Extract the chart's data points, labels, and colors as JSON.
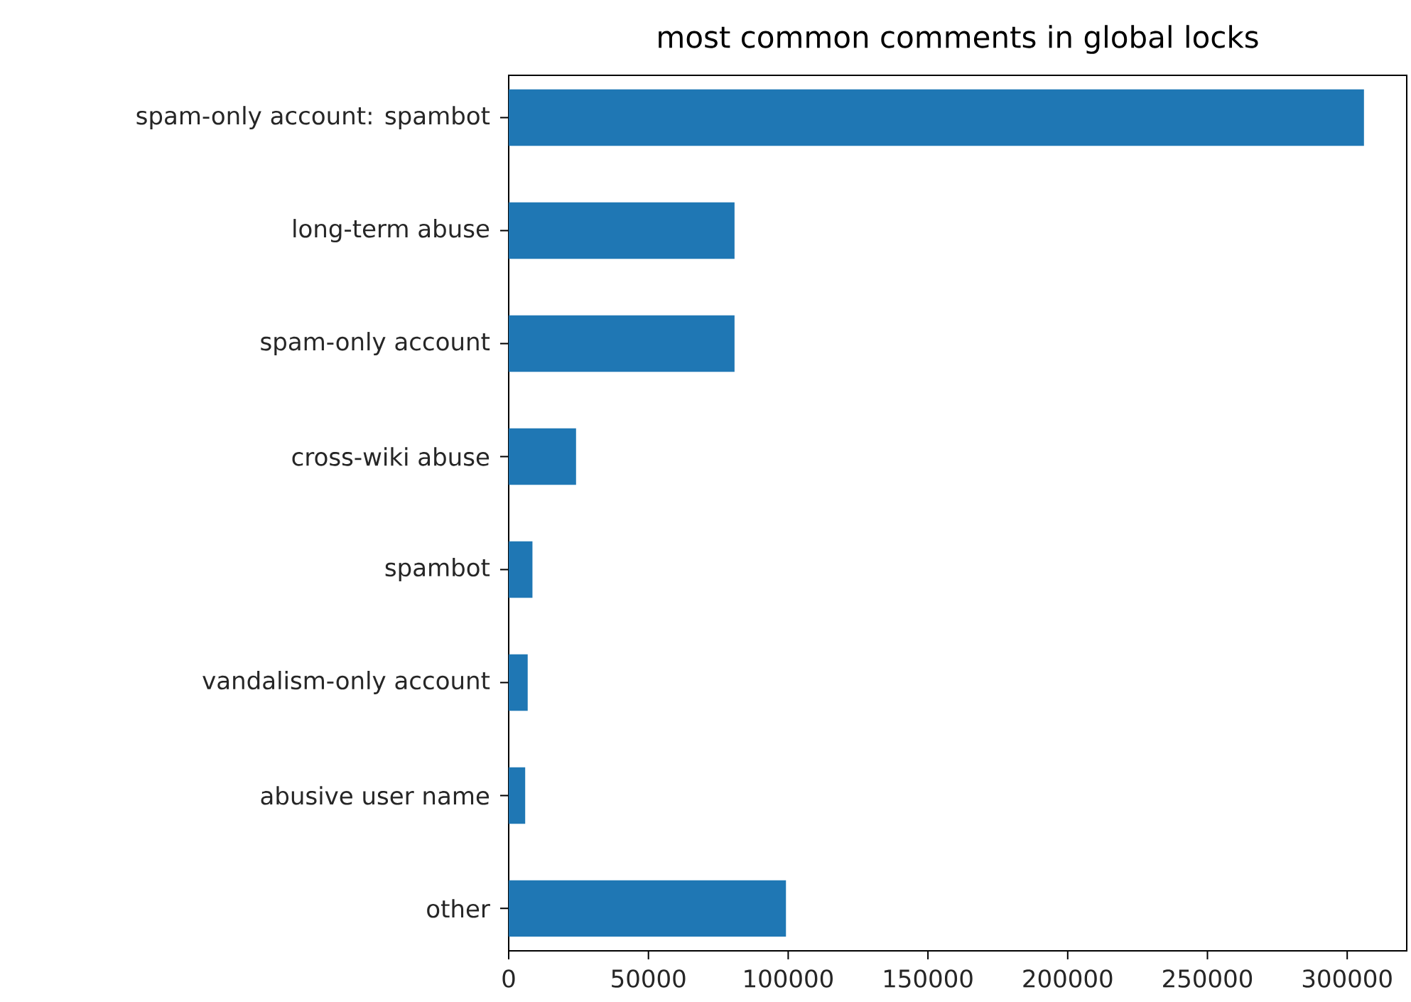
{
  "chart_data": {
    "type": "bar",
    "orientation": "horizontal",
    "title": "most common comments in global locks",
    "categories": [
      "spam-only account: spambot",
      "long-term abuse",
      "spam-only account",
      "cross-wiki abuse",
      "spambot",
      "vandalism-only account",
      "abusive user name",
      "other"
    ],
    "values": [
      306000,
      80800,
      80800,
      24100,
      8500,
      6800,
      5900,
      99200
    ],
    "color": "#1f77b4",
    "xlim": [
      0,
      321300
    ],
    "xticks": [
      0,
      50000,
      100000,
      150000,
      200000,
      250000,
      300000
    ]
  }
}
